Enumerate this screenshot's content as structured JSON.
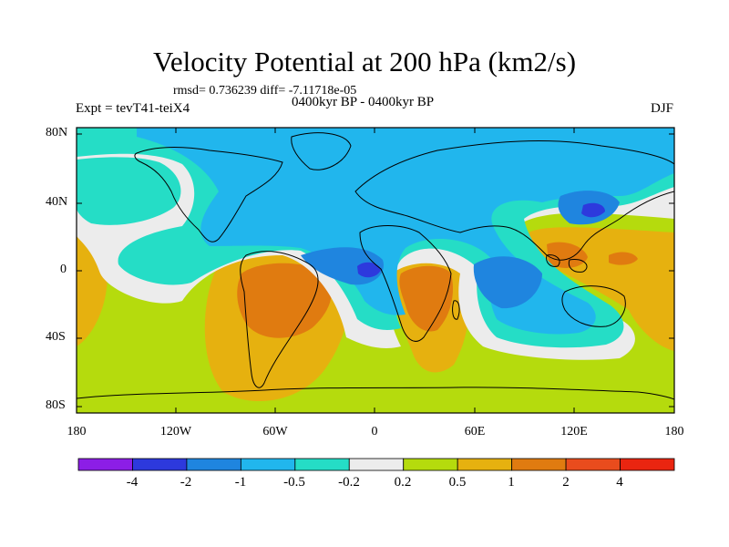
{
  "title": "Velocity Potential at 200 hPa (km2/s)",
  "stats": "rmsd= 0.736239 diff= -7.11718e-05",
  "experiment": "Expt = tevT41-teiX4",
  "period": "0400kyr BP - 0400kyr BP",
  "season": "DJF",
  "lat_labels": [
    "80N",
    "40N",
    "0",
    "40S",
    "80S"
  ],
  "lon_labels": [
    "180",
    "120W",
    "60W",
    "0",
    "60E",
    "120E",
    "180"
  ],
  "colorbar": {
    "levels": [
      "-4",
      "-2",
      "-1",
      "-0.5",
      "-0.2",
      "0.2",
      "0.5",
      "1",
      "2",
      "4"
    ],
    "colors": [
      "#8c1ee6",
      "#2d39dd",
      "#1f85df",
      "#21b6ed",
      "#25ddc6",
      "#ececec",
      "#b5db0d",
      "#e6b10f",
      "#e07b10",
      "#e94c1d",
      "#ea2510"
    ]
  }
}
